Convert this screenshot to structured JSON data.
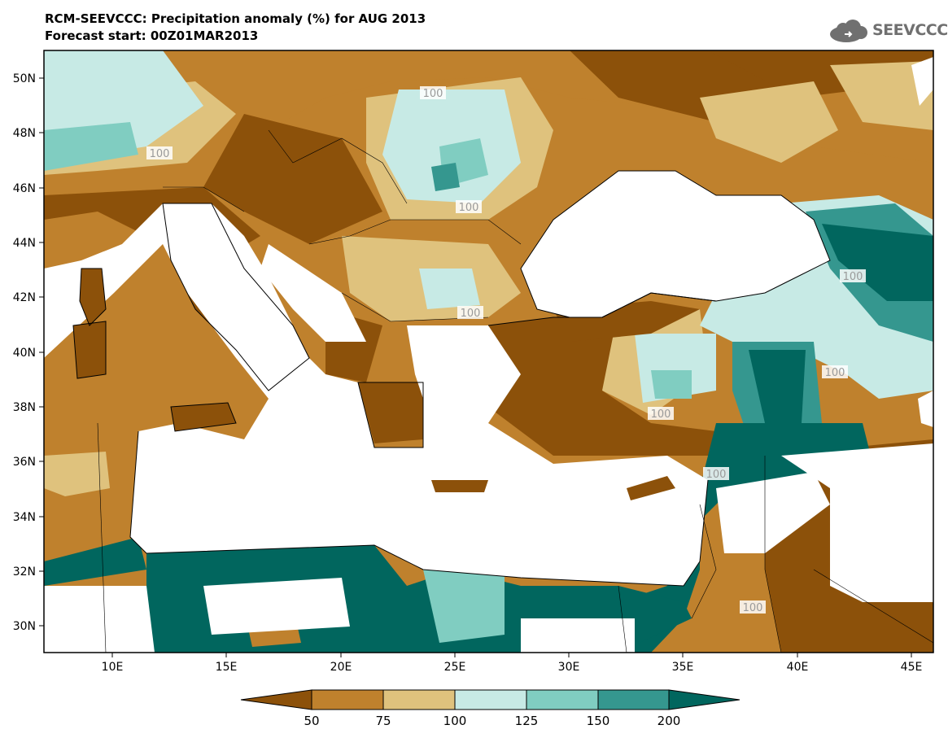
{
  "header": {
    "title": "RCM-SEEVCCC: Precipitation anomaly (%) for AUG 2013",
    "subtitle": "Forecast start: 00Z01MAR2013"
  },
  "logo": {
    "text": "SEEVCCC",
    "icon": "cloud-icon",
    "color": "#707070"
  },
  "map": {
    "lon_range": [
      7,
      46
    ],
    "lat_range": [
      29,
      51
    ],
    "lat_ticks": [
      "50N",
      "48N",
      "46N",
      "44N",
      "42N",
      "40N",
      "38N",
      "36N",
      "34N",
      "32N",
      "30N"
    ],
    "lon_ticks": [
      "10E",
      "15E",
      "20E",
      "25E",
      "30E",
      "35E",
      "40E",
      "45E"
    ],
    "contour_labels": [
      "100",
      "100",
      "100",
      "100",
      "100",
      "100",
      "100",
      "100",
      "100"
    ]
  },
  "colorbar": {
    "boundaries": [
      "50",
      "75",
      "100",
      "125",
      "150",
      "200"
    ],
    "colors": [
      "#8c510a",
      "#bf812d",
      "#dfc27d",
      "#c7eae5",
      "#80cdc1",
      "#35978f",
      "#01665e"
    ]
  }
}
